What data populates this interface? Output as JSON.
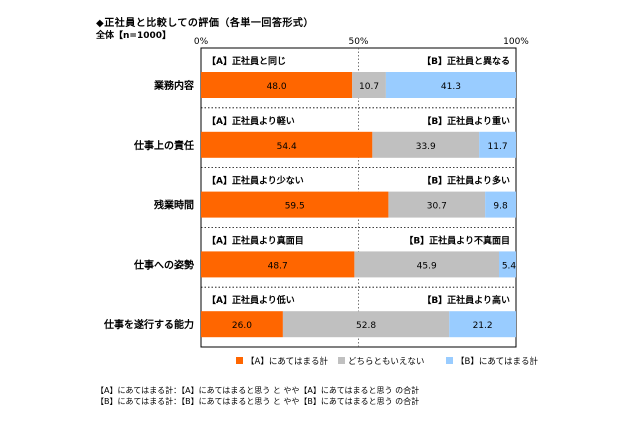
{
  "header": {
    "title": "◆正社員と比較しての評価（各単一回答形式）",
    "total": "全体【n=1000】"
  },
  "chart_data": {
    "type": "bar",
    "stacked": true,
    "orientation": "horizontal",
    "xlim": [
      0,
      100
    ],
    "x_ticks": [
      "0%",
      "50%",
      "100%"
    ],
    "categories": [
      "業務内容",
      "仕事上の責任",
      "残業時間",
      "仕事への姿勢",
      "仕事を遂行する能力"
    ],
    "pair_labels": [
      {
        "a": "【A】正社員と同じ",
        "b": "【B】正社員と異なる"
      },
      {
        "a": "【A】正社員より軽い",
        "b": "【B】正社員より重い"
      },
      {
        "a": "【A】正社員より少ない",
        "b": "【B】正社員より多い"
      },
      {
        "a": "【A】正社員より真面目",
        "b": "【B】正社員より不真面目"
      },
      {
        "a": "【A】正社員より低い",
        "b": "【B】正社員より高い"
      }
    ],
    "series": [
      {
        "name": "【A】にあてはまる計",
        "color": "#FF6600",
        "values": [
          48.0,
          54.4,
          59.5,
          48.7,
          26.0
        ]
      },
      {
        "name": "どちらともいえない",
        "color": "#C0C0C0",
        "values": [
          10.7,
          33.9,
          30.7,
          45.9,
          52.8
        ]
      },
      {
        "name": "【B】にあてはまる計",
        "color": "#99CCFF",
        "values": [
          41.3,
          11.7,
          9.8,
          5.4,
          21.2
        ]
      }
    ],
    "legend_position": "bottom"
  },
  "notes": [
    "【A】にあてはまる計：【A】にあてはまると思う と やや【A】にあてはまると思う の合計",
    "【B】にあてはまる計：【B】にあてはまると思う と やや【B】にあてはまると思う の合計"
  ]
}
